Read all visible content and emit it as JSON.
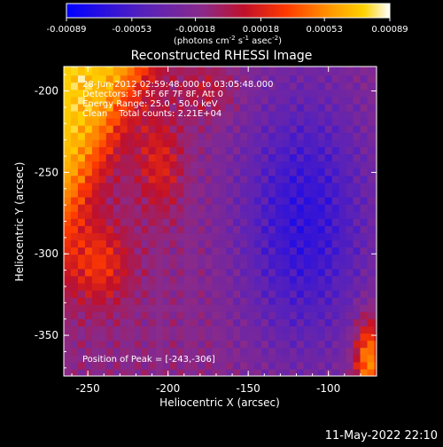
{
  "colorbar": {
    "ticks": [
      "-0.00089",
      "-0.00053",
      "-0.00018",
      "0.00018",
      "0.00053",
      "0.00089"
    ],
    "units_prefix": "(photons cm",
    "units_sup1": "-2",
    "units_mid": " s",
    "units_sup2": "-1",
    "units_mid2": " asec",
    "units_sup3": "-2",
    "units_suffix": ")"
  },
  "plot": {
    "title": "Reconstructed RHESSI Image",
    "xlabel": "Heliocentric X (arcsec)",
    "ylabel": "Heliocentric Y (arcsec)",
    "xticks": [
      "-250",
      "-200",
      "-150",
      "-100"
    ],
    "yticks": [
      "-200",
      "-250",
      "-300",
      "-350"
    ]
  },
  "annotations": {
    "time_range": "28-Jun-2012 02:59:48.000 to 03:05:48.000",
    "detectors": "Detectors: 3F 5F 6F 7F 8F, Att 0",
    "energy": "Energy Range: 25.0 - 50.0 keV",
    "algorithm": "Clean    Total counts: 2.21E+04",
    "peak": "Position of Peak = [-243,-306]"
  },
  "footer": {
    "timestamp": "11-May-2022 22:10"
  },
  "chart_data": {
    "type": "heatmap",
    "title": "Reconstructed RHESSI Image",
    "xlabel": "Heliocentric X (arcsec)",
    "ylabel": "Heliocentric Y (arcsec)",
    "xlim": [
      -265,
      -70
    ],
    "ylim": [
      -375,
      -185
    ],
    "colorbar_range": [
      -0.00089,
      0.00089
    ],
    "colormap": [
      "#0000ff",
      "#5a22b8",
      "#8a2a8a",
      "#c0102a",
      "#ff3a00",
      "#ff9a00",
      "#ffd200",
      "#ffffff"
    ],
    "peak_position": [
      -243,
      -306
    ]
  }
}
